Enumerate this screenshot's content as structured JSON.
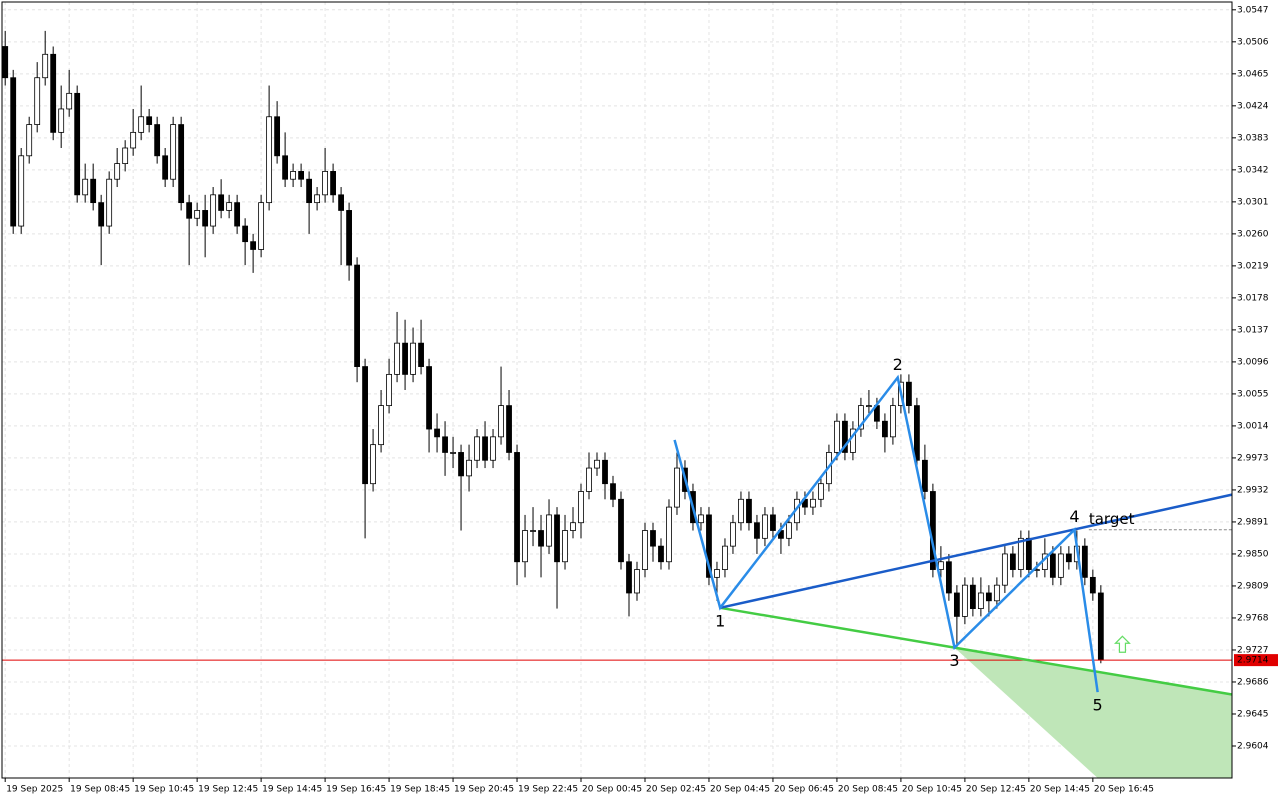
{
  "chart_data": {
    "type": "candlestick",
    "candles": [
      [
        3.05,
        3.052,
        3.045,
        3.046
      ],
      [
        3.046,
        3.047,
        3.026,
        3.027
      ],
      [
        3.027,
        3.037,
        3.026,
        3.036
      ],
      [
        3.036,
        3.041,
        3.035,
        3.04
      ],
      [
        3.04,
        3.048,
        3.039,
        3.046
      ],
      [
        3.046,
        3.052,
        3.045,
        3.049
      ],
      [
        3.049,
        3.05,
        3.038,
        3.039
      ],
      [
        3.039,
        3.045,
        3.037,
        3.042
      ],
      [
        3.042,
        3.047,
        3.041,
        3.044
      ],
      [
        3.044,
        3.045,
        3.03,
        3.031
      ],
      [
        3.031,
        3.035,
        3.03,
        3.033
      ],
      [
        3.033,
        3.035,
        3.029,
        3.03
      ],
      [
        3.03,
        3.031,
        3.022,
        3.027
      ],
      [
        3.027,
        3.034,
        3.026,
        3.033
      ],
      [
        3.033,
        3.037,
        3.032,
        3.035
      ],
      [
        3.035,
        3.038,
        3.034,
        3.037
      ],
      [
        3.037,
        3.042,
        3.036,
        3.039
      ],
      [
        3.039,
        3.045,
        3.038,
        3.041
      ],
      [
        3.041,
        3.042,
        3.039,
        3.04
      ],
      [
        3.04,
        3.041,
        3.035,
        3.036
      ],
      [
        3.036,
        3.037,
        3.032,
        3.033
      ],
      [
        3.033,
        3.041,
        3.032,
        3.04
      ],
      [
        3.04,
        3.041,
        3.029,
        3.03
      ],
      [
        3.03,
        3.031,
        3.022,
        3.028
      ],
      [
        3.028,
        3.03,
        3.027,
        3.029
      ],
      [
        3.029,
        3.031,
        3.023,
        3.027
      ],
      [
        3.027,
        3.032,
        3.026,
        3.031
      ],
      [
        3.031,
        3.033,
        3.028,
        3.029
      ],
      [
        3.029,
        3.031,
        3.028,
        3.03
      ],
      [
        3.03,
        3.031,
        3.026,
        3.027
      ],
      [
        3.027,
        3.028,
        3.022,
        3.025
      ],
      [
        3.025,
        3.026,
        3.021,
        3.024
      ],
      [
        3.024,
        3.031,
        3.023,
        3.03
      ],
      [
        3.03,
        3.045,
        3.029,
        3.041
      ],
      [
        3.041,
        3.043,
        3.035,
        3.036
      ],
      [
        3.036,
        3.039,
        3.032,
        3.033
      ],
      [
        3.033,
        3.035,
        3.032,
        3.034
      ],
      [
        3.034,
        3.035,
        3.032,
        3.033
      ],
      [
        3.033,
        3.034,
        3.026,
        3.03
      ],
      [
        3.03,
        3.032,
        3.029,
        3.031
      ],
      [
        3.031,
        3.037,
        3.03,
        3.034
      ],
      [
        3.034,
        3.035,
        3.03,
        3.031
      ],
      [
        3.031,
        3.032,
        3.022,
        3.029
      ],
      [
        3.029,
        3.03,
        3.02,
        3.022
      ],
      [
        3.022,
        3.023,
        3.007,
        3.009
      ],
      [
        3.009,
        3.01,
        2.987,
        2.994
      ],
      [
        2.994,
        3.001,
        2.993,
        2.999
      ],
      [
        2.999,
        3.006,
        2.998,
        3.004
      ],
      [
        3.004,
        3.01,
        3.003,
        3.008
      ],
      [
        3.008,
        3.016,
        3.007,
        3.012
      ],
      [
        3.012,
        3.015,
        3.006,
        3.008
      ],
      [
        3.008,
        3.014,
        3.007,
        3.012
      ],
      [
        3.012,
        3.015,
        3.008,
        3.009
      ],
      [
        3.009,
        3.01,
        2.998,
        3.001
      ],
      [
        3.001,
        3.003,
        2.998,
        3.0
      ],
      [
        3.0,
        3.002,
        2.995,
        2.998
      ],
      [
        2.998,
        3.0,
        2.996,
        2.998
      ],
      [
        2.998,
        2.999,
        2.988,
        2.995
      ],
      [
        2.995,
        2.999,
        2.993,
        2.997
      ],
      [
        2.997,
        3.001,
        2.996,
        3.0
      ],
      [
        3.0,
        3.002,
        2.996,
        2.997
      ],
      [
        2.997,
        3.001,
        2.996,
        3.0
      ],
      [
        3.0,
        3.009,
        2.999,
        3.004
      ],
      [
        3.004,
        3.006,
        2.997,
        2.998
      ],
      [
        2.998,
        2.999,
        2.981,
        2.984
      ],
      [
        2.984,
        2.99,
        2.982,
        2.988
      ],
      [
        2.988,
        2.991,
        2.986,
        2.988
      ],
      [
        2.988,
        2.99,
        2.982,
        2.986
      ],
      [
        2.986,
        2.992,
        2.985,
        2.99
      ],
      [
        2.99,
        2.991,
        2.978,
        2.984
      ],
      [
        2.984,
        2.99,
        2.983,
        2.988
      ],
      [
        2.988,
        2.991,
        2.987,
        2.989
      ],
      [
        2.989,
        2.994,
        2.987,
        2.993
      ],
      [
        2.993,
        2.998,
        2.992,
        2.996
      ],
      [
        2.996,
        2.998,
        2.995,
        2.997
      ],
      [
        2.997,
        2.998,
        2.992,
        2.994
      ],
      [
        2.994,
        2.995,
        2.991,
        2.992
      ],
      [
        2.992,
        2.993,
        2.983,
        2.984
      ],
      [
        2.984,
        2.985,
        2.977,
        2.98
      ],
      [
        2.98,
        2.984,
        2.979,
        2.983
      ],
      [
        2.983,
        2.989,
        2.982,
        2.988
      ],
      [
        2.988,
        2.989,
        2.984,
        2.986
      ],
      [
        2.986,
        2.987,
        2.983,
        2.984
      ],
      [
        2.984,
        2.992,
        2.983,
        2.991
      ],
      [
        2.991,
        2.998,
        2.99,
        2.996
      ],
      [
        2.996,
        2.997,
        2.992,
        2.993
      ],
      [
        2.993,
        2.994,
        2.988,
        2.989
      ],
      [
        2.989,
        2.991,
        2.988,
        2.99
      ],
      [
        2.99,
        2.991,
        2.981,
        2.982
      ],
      [
        2.982,
        2.984,
        2.979,
        2.983
      ],
      [
        2.983,
        2.987,
        2.982,
        2.986
      ],
      [
        2.986,
        2.99,
        2.985,
        2.989
      ],
      [
        2.989,
        2.993,
        2.988,
        2.992
      ],
      [
        2.992,
        2.993,
        2.988,
        2.989
      ],
      [
        2.989,
        2.99,
        2.985,
        2.987
      ],
      [
        2.987,
        2.991,
        2.986,
        2.99
      ],
      [
        2.99,
        2.991,
        2.987,
        2.988
      ],
      [
        2.988,
        2.989,
        2.985,
        2.987
      ],
      [
        2.987,
        2.99,
        2.986,
        2.989
      ],
      [
        2.989,
        2.993,
        2.988,
        2.992
      ],
      [
        2.992,
        2.993,
        2.99,
        2.991
      ],
      [
        2.991,
        2.993,
        2.99,
        2.992
      ],
      [
        2.992,
        2.995,
        2.991,
        2.994
      ],
      [
        2.994,
        2.999,
        2.993,
        2.998
      ],
      [
        2.998,
        3.003,
        2.997,
        3.002
      ],
      [
        3.002,
        3.003,
        2.997,
        2.998
      ],
      [
        2.998,
        3.002,
        2.997,
        3.001
      ],
      [
        3.001,
        3.005,
        3.0,
        3.004
      ],
      [
        3.004,
        3.006,
        3.003,
        3.004
      ],
      [
        3.004,
        3.005,
        3.001,
        3.002
      ],
      [
        3.002,
        3.003,
        2.998,
        3.0
      ],
      [
        3.0,
        3.005,
        2.999,
        3.004
      ],
      [
        3.004,
        3.008,
        3.003,
        3.007
      ],
      [
        3.007,
        3.008,
        3.003,
        3.004
      ],
      [
        3.004,
        3.005,
        2.996,
        2.997
      ],
      [
        2.997,
        2.999,
        2.992,
        2.993
      ],
      [
        2.993,
        2.994,
        2.982,
        2.983
      ],
      [
        2.983,
        2.986,
        2.982,
        2.984
      ],
      [
        2.984,
        2.985,
        2.979,
        2.98
      ],
      [
        2.98,
        2.981,
        2.973,
        2.977
      ],
      [
        2.977,
        2.982,
        2.976,
        2.981
      ],
      [
        2.981,
        2.982,
        2.977,
        2.978
      ],
      [
        2.978,
        2.982,
        2.977,
        2.98
      ],
      [
        2.98,
        2.981,
        2.977,
        2.979
      ],
      [
        2.979,
        2.982,
        2.978,
        2.981
      ],
      [
        2.981,
        2.986,
        2.98,
        2.985
      ],
      [
        2.985,
        2.986,
        2.982,
        2.983
      ],
      [
        2.983,
        2.988,
        2.982,
        2.987
      ],
      [
        2.987,
        2.988,
        2.982,
        2.983
      ],
      [
        2.983,
        2.984,
        2.982,
        2.983
      ],
      [
        2.983,
        2.987,
        2.982,
        2.985
      ],
      [
        2.985,
        2.986,
        2.981,
        2.982
      ],
      [
        2.982,
        2.986,
        2.981,
        2.985
      ],
      [
        2.985,
        2.986,
        2.983,
        2.984
      ],
      [
        2.984,
        2.988,
        2.983,
        2.986
      ],
      [
        2.986,
        2.987,
        2.981,
        2.982
      ],
      [
        2.982,
        2.983,
        2.979,
        2.98
      ],
      [
        2.98,
        2.981,
        2.971,
        2.9714
      ]
    ],
    "bull_color": "#ffffff",
    "bear_color": "#000000",
    "xlim": [
      -0.4,
      153.4
    ],
    "xticks": [
      {
        "value": 0,
        "label": "19 Sep 2025"
      },
      {
        "value": 8,
        "label": "19 Sep 08:45"
      },
      {
        "value": 16,
        "label": "19 Sep 10:45"
      },
      {
        "value": 24,
        "label": "19 Sep 12:45"
      },
      {
        "value": 32,
        "label": "19 Sep 14:45"
      },
      {
        "value": 40,
        "label": "19 Sep 16:45"
      },
      {
        "value": 48,
        "label": "19 Sep 18:45"
      },
      {
        "value": 56,
        "label": "19 Sep 20:45"
      },
      {
        "value": 64,
        "label": "19 Sep 22:45"
      },
      {
        "value": 72,
        "label": "20 Sep 00:45"
      },
      {
        "value": 80,
        "label": "20 Sep 02:45"
      },
      {
        "value": 88,
        "label": "20 Sep 04:45"
      },
      {
        "value": 96,
        "label": "20 Sep 06:45"
      },
      {
        "value": 104,
        "label": "20 Sep 08:45"
      },
      {
        "value": 112,
        "label": "20 Sep 10:45"
      },
      {
        "value": 120,
        "label": "20 Sep 12:45"
      },
      {
        "value": 128,
        "label": "20 Sep 14:45"
      },
      {
        "value": 136,
        "label": "20 Sep 16:45"
      }
    ],
    "ylim": [
      2.9563,
      3.0557
    ],
    "yticks": [
      3.0547,
      3.0506,
      3.0465,
      3.0424,
      3.0383,
      3.0342,
      3.0301,
      {
        "value": 3.026,
        "label": "3.0260"
      },
      3.0219,
      3.0178,
      3.0137,
      3.0096,
      3.0055,
      3.0014,
      2.9973,
      2.9932,
      2.9891,
      {
        "value": 2.985,
        "label": "2.9850"
      },
      2.9809,
      2.9768,
      2.9727,
      2.9686,
      2.9645,
      2.9604
    ],
    "grid": true,
    "last_price": 2.9714,
    "last_price_color": "#e00000",
    "pattern": {
      "zigzag": {
        "x": [
          83.7,
          89.4,
          111.6,
          118.7,
          133.7,
          136.6
        ],
        "y": [
          2.9996,
          2.9781,
          3.0076,
          2.973,
          2.9881,
          2.9673
        ],
        "color": "#2a8ce8"
      },
      "labels": [
        "1",
        "2",
        "3",
        "4",
        "5"
      ],
      "label_color": "#44cc44",
      "upper_line": {
        "x": [
          89.4,
          153.4
        ],
        "y": [
          2.9781,
          2.9926
        ],
        "color": "#1a5cc8"
      },
      "lower_line": {
        "x": [
          89.4,
          118.7,
          153.4
        ],
        "y": [
          2.9781,
          2.973,
          2.967
        ],
        "color": "#44cc44"
      },
      "zone": {
        "x": [
          118.7,
          153.4,
          153.4,
          136.6
        ],
        "y": [
          2.973,
          2.967,
          2.9563,
          2.9563
        ],
        "color": "#bfe6b8"
      },
      "target": {
        "label": "target",
        "value": 2.9881,
        "x": [
          135.5,
          153.4
        ]
      },
      "signal_arrow": {
        "x": 139.7,
        "y": 2.9733,
        "color": "#66dd66"
      }
    }
  }
}
